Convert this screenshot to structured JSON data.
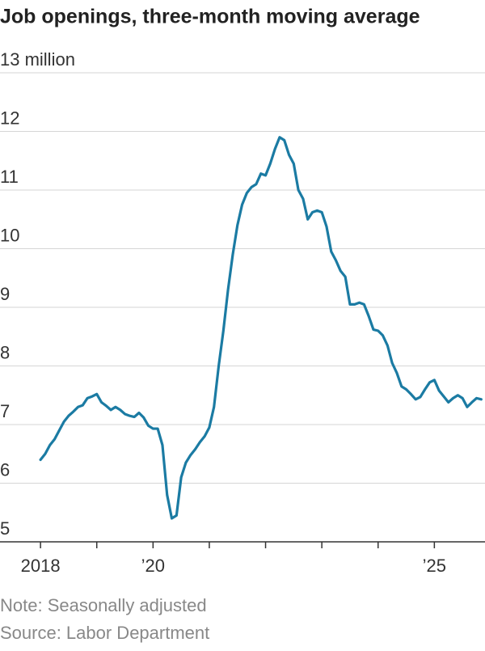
{
  "chart_data": {
    "type": "line",
    "title": "Job openings, three-month moving average",
    "note": "Note: Seasonally adjusted",
    "source": "Source: Labor Department",
    "x": [
      2018,
      2018.083,
      2018.167,
      2018.25,
      2018.333,
      2018.417,
      2018.5,
      2018.583,
      2018.667,
      2018.75,
      2018.833,
      2018.917,
      2019,
      2019.083,
      2019.167,
      2019.25,
      2019.333,
      2019.417,
      2019.5,
      2019.583,
      2019.667,
      2019.75,
      2019.833,
      2019.917,
      2020,
      2020.083,
      2020.167,
      2020.25,
      2020.333,
      2020.417,
      2020.5,
      2020.583,
      2020.667,
      2020.75,
      2020.833,
      2020.917,
      2021,
      2021.083,
      2021.167,
      2021.25,
      2021.333,
      2021.417,
      2021.5,
      2021.583,
      2021.667,
      2021.75,
      2021.833,
      2021.917,
      2022,
      2022.083,
      2022.167,
      2022.25,
      2022.333,
      2022.417,
      2022.5,
      2022.583,
      2022.667,
      2022.75,
      2022.833,
      2022.917,
      2023,
      2023.083,
      2023.167,
      2023.25,
      2023.333,
      2023.417,
      2023.5,
      2023.583,
      2023.667,
      2023.75,
      2023.833,
      2023.917,
      2024,
      2024.083,
      2024.167,
      2024.25,
      2024.333,
      2024.417,
      2024.5,
      2024.583,
      2024.667,
      2024.75,
      2024.833,
      2024.917,
      2025,
      2025.083,
      2025.167,
      2025.25,
      2025.333,
      2025.417,
      2025.5,
      2025.583,
      2025.667,
      2025.75,
      2025.833
    ],
    "series": [
      {
        "color": "#1b7ba3",
        "values": [
          6.4,
          6.5,
          6.65,
          6.75,
          6.9,
          7.05,
          7.15,
          7.22,
          7.3,
          7.33,
          7.45,
          7.48,
          7.52,
          7.38,
          7.32,
          7.25,
          7.3,
          7.25,
          7.18,
          7.15,
          7.13,
          7.2,
          7.12,
          6.98,
          6.93,
          6.93,
          6.65,
          5.8,
          5.4,
          5.45,
          6.1,
          6.35,
          6.48,
          6.58,
          6.7,
          6.8,
          6.95,
          7.3,
          8.0,
          8.6,
          9.3,
          9.9,
          10.4,
          10.75,
          10.95,
          11.05,
          11.1,
          11.28,
          11.25,
          11.45,
          11.7,
          11.9,
          11.85,
          11.6,
          11.45,
          11.0,
          10.85,
          10.5,
          10.62,
          10.65,
          10.62,
          10.38,
          9.95,
          9.8,
          9.62,
          9.52,
          9.05,
          9.05,
          9.08,
          9.05,
          8.85,
          8.62,
          8.6,
          8.52,
          8.35,
          8.05,
          7.88,
          7.65,
          7.6,
          7.52,
          7.43,
          7.47,
          7.6,
          7.72,
          7.76,
          7.58,
          7.48,
          7.38,
          7.45,
          7.5,
          7.45,
          7.3,
          7.38,
          7.45,
          7.43
        ]
      }
    ],
    "xlim": [
      2017.28,
      2025.9
    ],
    "xticks": [
      2018,
      2019,
      2020,
      2021,
      2022,
      2023,
      2024,
      2025
    ],
    "xtick_labels": [
      2018,
      {
        "value": 2020,
        "label": "’20"
      },
      {
        "value": 2025,
        "label": "’25"
      }
    ],
    "ylim": [
      5,
      13
    ],
    "yticks": [
      {
        "value": 13,
        "label": "13 million"
      },
      12,
      11,
      10,
      9,
      8,
      7,
      6,
      5
    ],
    "grid": true
  }
}
